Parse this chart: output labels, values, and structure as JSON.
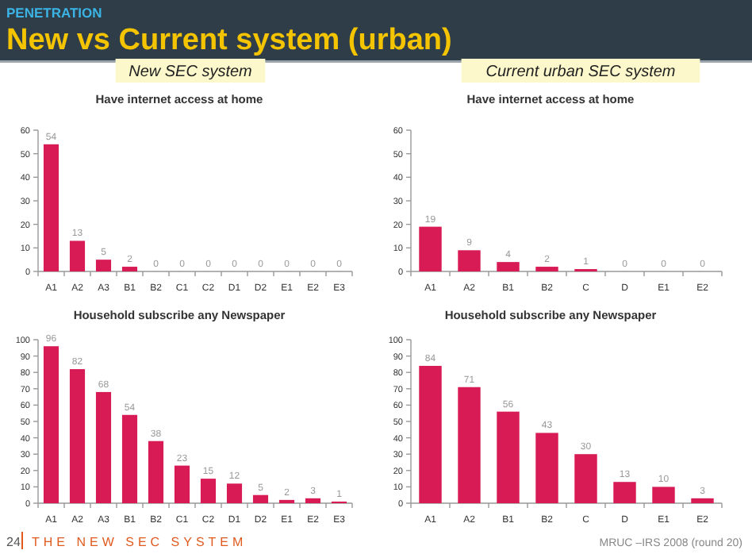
{
  "chart_data": [
    {
      "type": "other",
      "title": "New vs Current system (urban)",
      "subtitle": "PENETRATION",
      "annotations": [
        "24",
        "THE NEW SEC SYSTEM",
        "MRUC –IRS 2008 (round 20)"
      ]
    },
    {
      "type": "bar",
      "subtitle": "New SEC system",
      "title": "Have internet access at home",
      "categories": [
        "A1",
        "A2",
        "A3",
        "B1",
        "B2",
        "C1",
        "C2",
        "D1",
        "D2",
        "E1",
        "E2",
        "E3"
      ],
      "values": [
        54,
        13,
        5,
        2,
        0,
        0,
        0,
        0,
        0,
        0,
        0,
        0
      ],
      "color": "#d81b55",
      "ylim": [
        0,
        60
      ],
      "yticks": [
        0,
        10,
        20,
        30,
        40,
        50,
        60
      ],
      "data_labels": true
    },
    {
      "type": "bar",
      "subtitle": "Current urban SEC system",
      "title": "Have internet access at home",
      "categories": [
        "A1",
        "A2",
        "B1",
        "B2",
        "C",
        "D",
        "E1",
        "E2"
      ],
      "values": [
        19,
        9,
        4,
        2,
        1,
        0,
        0,
        0
      ],
      "color": "#d81b55",
      "ylim": [
        0,
        60
      ],
      "yticks": [
        0,
        10,
        20,
        30,
        40,
        50,
        60
      ],
      "data_labels": true
    },
    {
      "type": "bar",
      "title": "Household subscribe any Newspaper",
      "categories": [
        "A1",
        "A2",
        "A3",
        "B1",
        "B2",
        "C1",
        "C2",
        "D1",
        "D2",
        "E1",
        "E2",
        "E3"
      ],
      "values": [
        96,
        82,
        68,
        54,
        38,
        23,
        15,
        12,
        5,
        2,
        3,
        1
      ],
      "color": "#d81b55",
      "ylim": [
        0,
        100
      ],
      "yticks": [
        0,
        10,
        20,
        30,
        40,
        50,
        60,
        70,
        80,
        90,
        100
      ],
      "data_labels": true
    },
    {
      "type": "bar",
      "title": "Household subscribe any Newspaper",
      "categories": [
        "A1",
        "A2",
        "B1",
        "B2",
        "C",
        "D",
        "E1",
        "E2"
      ],
      "values": [
        84,
        71,
        56,
        43,
        30,
        13,
        10,
        3
      ],
      "color": "#d81b55",
      "ylim": [
        0,
        100
      ],
      "yticks": [
        0,
        10,
        20,
        30,
        40,
        50,
        60,
        70,
        80,
        90,
        100
      ],
      "data_labels": true
    }
  ]
}
